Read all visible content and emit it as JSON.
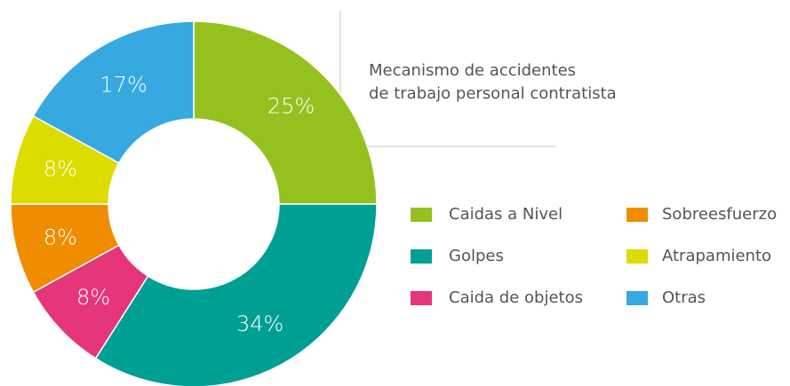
{
  "chart_data": {
    "type": "donut",
    "title": [
      "Mecanismo de accidentes",
      "de trabajo personal contratista"
    ],
    "categories": [
      "Caidas a Nivel",
      "Golpes",
      "Caida de objetos",
      "Sobreesfuerzo",
      "Atrapamiento",
      "Otras"
    ],
    "values": [
      25,
      34,
      8,
      8,
      8,
      17
    ],
    "value_labels": [
      "25%",
      "34%",
      "8%",
      "8%",
      "8%",
      "17%"
    ],
    "colors": [
      "#95c11f",
      "#009f93",
      "#e6367a",
      "#ef8c00",
      "#dddc00",
      "#36a9e1"
    ],
    "legend": "right"
  }
}
